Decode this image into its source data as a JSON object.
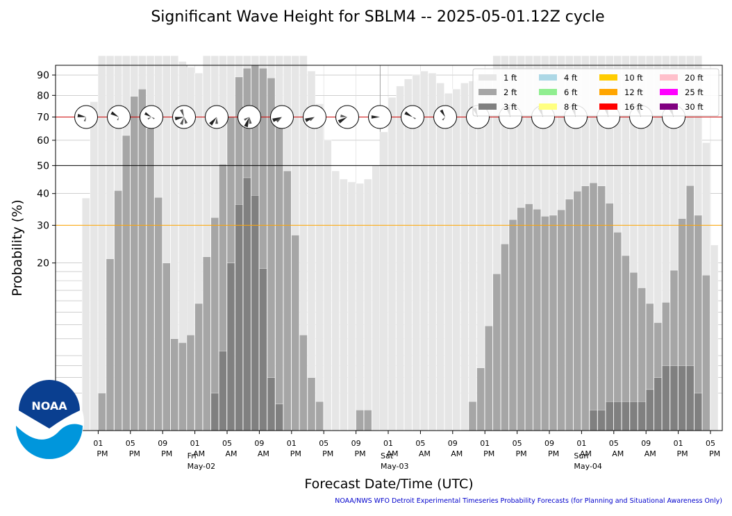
{
  "title": "Significant Wave Height for SBLM4 -- 2025-05-01.12Z cycle",
  "footer_credit": "NOAA/NWS WFO Detroit Experimental Timeseries Probability Forecasts (for Planning and Situational Awareness Only)",
  "logo_text": "NOAA",
  "chart_data": {
    "type": "bar",
    "title": "Significant Wave Height for SBLM4 -- 2025-05-01.12Z cycle",
    "xlabel": "Forecast Date/Time (UTC)",
    "ylabel": "Probability (%)",
    "y_scale": "sqrt",
    "ylim": [
      0,
      95
    ],
    "y_ticks": [
      20,
      30,
      40,
      50,
      60,
      70,
      80,
      90
    ],
    "reference_lines": [
      {
        "value": 30,
        "color": "#ffa500"
      },
      {
        "value": 50,
        "color": "#000000"
      },
      {
        "value": 70,
        "color": "#cc0000"
      }
    ],
    "x_tick_labels": [
      {
        "hour": "01",
        "ampm": "PM",
        "day": ""
      },
      {
        "hour": "05",
        "ampm": "PM",
        "day": ""
      },
      {
        "hour": "09",
        "ampm": "PM",
        "day": ""
      },
      {
        "hour": "01",
        "ampm": "AM",
        "day": "Fri May-02"
      },
      {
        "hour": "05",
        "ampm": "AM",
        "day": ""
      },
      {
        "hour": "09",
        "ampm": "AM",
        "day": ""
      },
      {
        "hour": "01",
        "ampm": "PM",
        "day": ""
      },
      {
        "hour": "05",
        "ampm": "PM",
        "day": ""
      },
      {
        "hour": "09",
        "ampm": "PM",
        "day": ""
      },
      {
        "hour": "01",
        "ampm": "AM",
        "day": "Sat May-03"
      },
      {
        "hour": "05",
        "ampm": "AM",
        "day": ""
      },
      {
        "hour": "09",
        "ampm": "AM",
        "day": ""
      },
      {
        "hour": "01",
        "ampm": "PM",
        "day": ""
      },
      {
        "hour": "05",
        "ampm": "PM",
        "day": ""
      },
      {
        "hour": "09",
        "ampm": "PM",
        "day": ""
      },
      {
        "hour": "01",
        "ampm": "AM",
        "day": "Sun May-04"
      },
      {
        "hour": "05",
        "ampm": "AM",
        "day": ""
      },
      {
        "hour": "09",
        "ampm": "AM",
        "day": ""
      },
      {
        "hour": "01",
        "ampm": "PM",
        "day": ""
      },
      {
        "hour": "05",
        "ampm": "PM",
        "day": ""
      }
    ],
    "legend": [
      {
        "label": "1 ft",
        "color": "#e6e6e6"
      },
      {
        "label": "2 ft",
        "color": "#a6a6a6"
      },
      {
        "label": "3 ft",
        "color": "#808080"
      },
      {
        "label": "4 ft",
        "color": "#add8e6"
      },
      {
        "label": "6 ft",
        "color": "#90ee90"
      },
      {
        "label": "8 ft",
        "color": "#ffff80"
      },
      {
        "label": "10 ft",
        "color": "#ffcc00"
      },
      {
        "label": "12 ft",
        "color": "#ffa500"
      },
      {
        "label": "16 ft",
        "color": "#ff0000"
      },
      {
        "label": "20 ft",
        "color": "#ffc0cb"
      },
      {
        "label": "25 ft",
        "color": "#ff00ff"
      },
      {
        "label": "30 ft",
        "color": "#800080"
      }
    ],
    "legend_position": "top-right",
    "series": [
      {
        "name": "1 ft",
        "color": "#e6e6e6",
        "values": [
          38.5,
          77,
          100,
          100,
          100,
          100,
          100,
          100,
          100,
          100,
          100,
          100,
          97,
          94,
          91,
          100,
          100,
          100,
          100,
          100,
          100,
          100,
          100,
          100,
          100,
          100,
          100,
          100,
          92,
          76,
          60,
          48,
          45,
          44,
          43.5,
          45,
          50,
          63.5,
          79,
          84.5,
          88,
          90,
          92,
          91,
          86,
          81,
          83,
          86,
          87,
          88,
          90,
          100,
          100,
          100,
          100,
          100,
          100,
          100,
          100,
          100,
          100,
          100,
          100,
          100,
          100,
          100,
          100,
          100,
          100,
          100,
          100,
          100,
          100,
          100,
          100,
          100,
          100,
          59,
          24.5
        ]
      },
      {
        "name": "2 ft",
        "color": "#a6a6a6",
        "values": [
          0,
          0,
          1,
          21,
          41,
          62,
          79.5,
          83,
          65,
          38.7,
          20,
          6,
          5.5,
          6.5,
          11.5,
          21.5,
          32.3,
          50.5,
          70,
          89,
          93.5,
          95,
          93.5,
          88.5,
          70.5,
          48,
          27.2,
          6.5,
          2,
          0.6,
          0,
          0,
          0,
          0,
          0.3,
          0.3,
          0,
          0,
          0,
          0,
          0,
          0,
          0,
          0,
          0,
          0,
          0,
          0,
          0.6,
          2.8,
          7.8,
          17.5,
          24.8,
          31.7,
          35.4,
          36.6,
          34.9,
          32.7,
          33,
          34.7,
          38.1,
          40.8,
          42.6,
          43.7,
          42.6,
          36.8,
          28,
          21.8,
          17.8,
          14.5,
          11.5,
          8.3,
          11.7,
          18.3,
          32,
          42.7,
          33,
          17.2,
          0
        ]
      },
      {
        "name": "3 ft",
        "color": "#808080",
        "values": [
          0,
          0,
          0,
          0,
          0,
          0,
          0,
          0,
          0,
          0,
          0,
          0,
          0,
          0,
          0,
          0,
          1,
          4.5,
          20,
          36.4,
          45.5,
          39.4,
          18.7,
          2,
          0.5,
          0,
          0,
          0,
          0,
          0,
          0,
          0,
          0,
          0,
          0,
          0,
          0,
          0,
          0,
          0,
          0,
          0,
          0,
          0,
          0,
          0,
          0,
          0,
          0,
          0,
          0,
          0,
          0,
          0,
          0,
          0,
          0,
          0,
          0,
          0,
          0,
          0,
          0,
          0.3,
          0.3,
          0.6,
          0.6,
          0.6,
          0.6,
          0.6,
          1.2,
          2,
          3,
          3,
          3,
          3,
          1
        ]
      }
    ],
    "direction_roses": [
      {
        "bearings": [
          280,
          200
        ],
        "weights": [
          0.75,
          0.4
        ]
      },
      {
        "bearings": [
          300,
          200
        ],
        "weights": [
          0.75,
          0.3
        ]
      },
      {
        "bearings": [
          300,
          240,
          120
        ],
        "weights": [
          0.65,
          0.35,
          0.3
        ]
      },
      {
        "bearings": [
          260,
          340,
          200,
          160
        ],
        "weights": [
          0.8,
          0.7,
          0.7,
          0.6
        ]
      },
      {
        "bearings": [
          220,
          180
        ],
        "weights": [
          0.85,
          0.6
        ]
      },
      {
        "bearings": [
          200,
          170,
          240
        ],
        "weights": [
          0.9,
          0.6,
          0.5
        ]
      },
      {
        "bearings": [
          250,
          230
        ],
        "weights": [
          0.85,
          0.6
        ]
      },
      {
        "bearings": [
          250,
          235
        ],
        "weights": [
          0.85,
          0.5
        ]
      },
      {
        "bearings": [
          240,
          280
        ],
        "weights": [
          0.85,
          0.6
        ]
      },
      {
        "bearings": [
          270
        ],
        "weights": [
          0.75
        ]
      },
      {
        "bearings": [
          300,
          120
        ],
        "weights": [
          0.75,
          0.3
        ]
      },
      {
        "bearings": [
          330,
          220
        ],
        "weights": [
          0.7,
          0.35
        ]
      },
      {
        "bearings": [
          340
        ],
        "weights": [
          0.85
        ]
      },
      {
        "bearings": [
          345
        ],
        "weights": [
          0.9
        ]
      },
      {
        "bearings": [
          340
        ],
        "weights": [
          0.9
        ]
      },
      {
        "bearings": [
          345
        ],
        "weights": [
          0.9
        ]
      },
      {
        "bearings": [
          345
        ],
        "weights": [
          0.9
        ]
      },
      {
        "bearings": [
          340
        ],
        "weights": [
          0.85
        ]
      },
      {
        "bearings": [
          340
        ],
        "weights": [
          0.85
        ]
      }
    ]
  }
}
